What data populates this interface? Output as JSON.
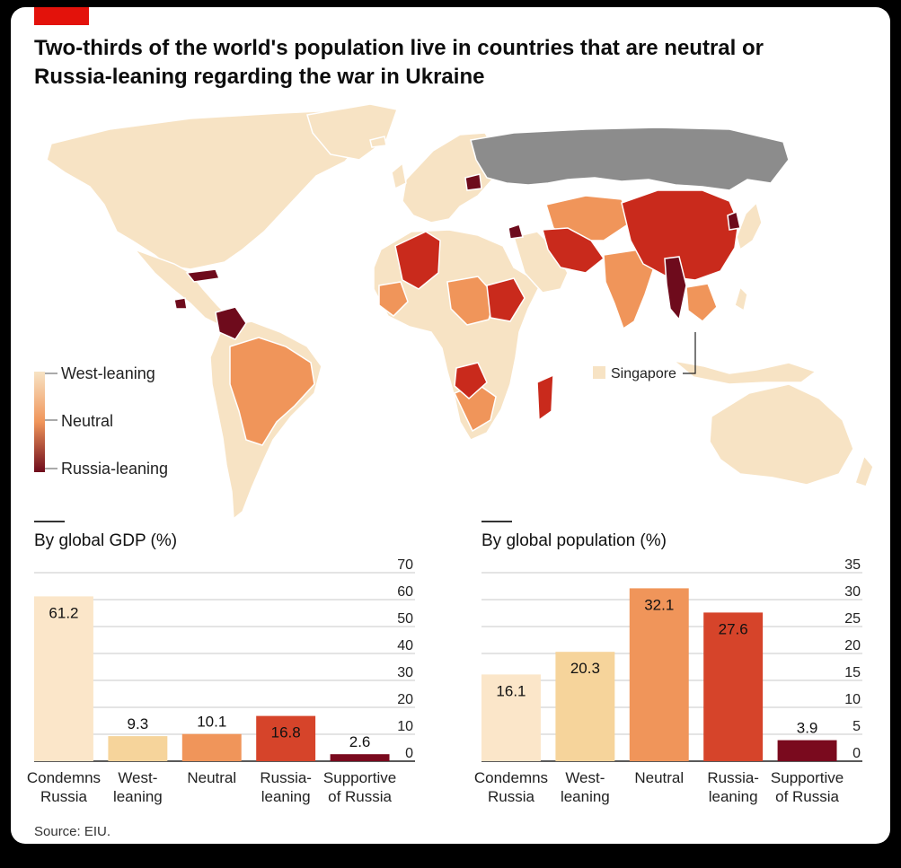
{
  "title": "Two-thirds of the world's population live in countries that are neutral or Russia-leaning regarding the war in Ukraine",
  "legend": {
    "labels": [
      "West-leaning",
      "Neutral",
      "Russia-leaning"
    ],
    "colors": [
      "#f7e3c4",
      "#f0955a",
      "#6e0b1c"
    ],
    "annotation": "Singapore"
  },
  "colors": {
    "west": "#f7e3c4",
    "west_leaning": "#f6d49b",
    "neutral": "#f0955a",
    "russia_leaning_mid": "#d6442a",
    "russia_leaning": "#c92a1c",
    "supportive": "#7a0a1e",
    "russia": "#8c8c8c"
  },
  "source": "Source: EIU.",
  "chart_data": [
    {
      "type": "bar",
      "title": "By global GDP (%)",
      "categories": [
        [
          "Condemns",
          "Russia"
        ],
        [
          "West-",
          "leaning"
        ],
        [
          "Neutral"
        ],
        [
          "Russia-",
          "leaning"
        ],
        [
          "Supportive",
          "of Russia"
        ]
      ],
      "values": [
        61.2,
        9.3,
        10.1,
        16.8,
        2.6
      ],
      "value_labels": [
        "61.2",
        "9.3",
        "10.1",
        "16.8",
        "2.6"
      ],
      "bar_colors": [
        "#fbe6c9",
        "#f6d49b",
        "#f0955a",
        "#d6442a",
        "#7a0a1e"
      ],
      "ylim": [
        0,
        70
      ],
      "ticks": [
        0,
        10,
        20,
        30,
        40,
        50,
        60,
        70
      ],
      "grid": true
    },
    {
      "type": "bar",
      "title": "By global population (%)",
      "categories": [
        [
          "Condemns",
          "Russia"
        ],
        [
          "West-",
          "leaning"
        ],
        [
          "Neutral"
        ],
        [
          "Russia-",
          "leaning"
        ],
        [
          "Supportive",
          "of Russia"
        ]
      ],
      "values": [
        16.1,
        20.3,
        32.1,
        27.6,
        3.9
      ],
      "value_labels": [
        "16.1",
        "20.3",
        "32.1",
        "27.6",
        "3.9"
      ],
      "bar_colors": [
        "#fbe6c9",
        "#f6d49b",
        "#f0955a",
        "#d6442a",
        "#7a0a1e"
      ],
      "ylim": [
        0,
        35
      ],
      "ticks": [
        0,
        5,
        10,
        15,
        20,
        25,
        30,
        35
      ],
      "grid": true
    }
  ]
}
